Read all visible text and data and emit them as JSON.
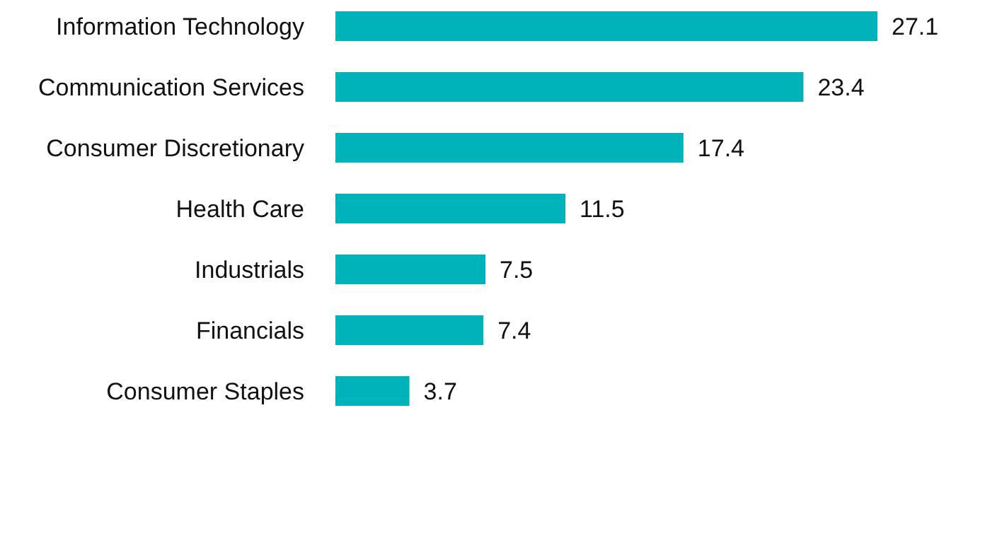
{
  "chart_data": {
    "type": "bar",
    "orientation": "horizontal",
    "categories": [
      "Information Technology",
      "Communication Services",
      "Consumer Discretionary",
      "Health Care",
      "Industrials",
      "Financials",
      "Consumer Staples"
    ],
    "values": [
      27.1,
      23.4,
      17.4,
      11.5,
      7.5,
      7.4,
      3.7
    ],
    "color": "#00b2ba",
    "data_labels": true
  }
}
